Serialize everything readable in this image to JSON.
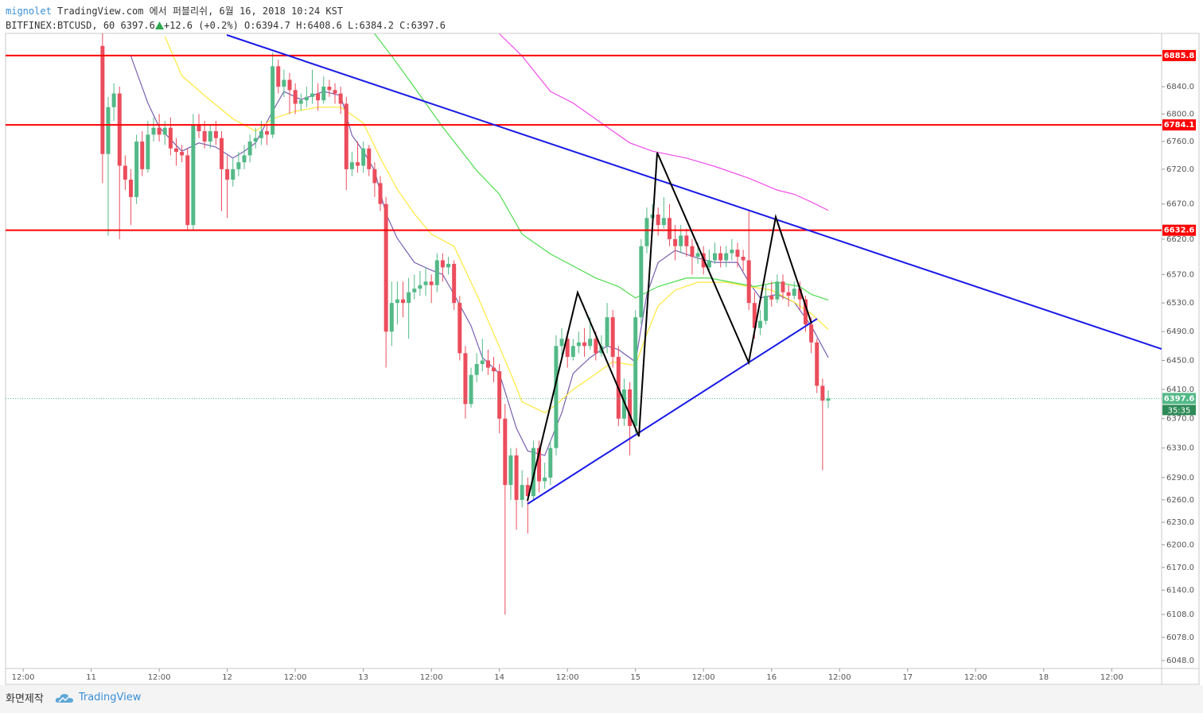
{
  "header": {
    "author": "mignolet",
    "publisher": "TradingView.com 에서 퍼블리쉬, 6월 16, 2018 10:24 KST",
    "symbol": "BITFINEX:BTCUSD, 60",
    "change": "+12.6 (+0.2%)",
    "o_label": "O:",
    "h_label": "H:",
    "l_label": "L:",
    "c_label": "C:"
  },
  "footer": {
    "caption": "화면제작",
    "brand": "TradingView"
  },
  "chart_data": {
    "type": "candlestick",
    "log_scale": true,
    "grid": false,
    "countdown": "35:35",
    "xlim": [
      -3.1,
      200.8
    ],
    "ylim": [
      6037.7,
      6918.6
    ],
    "xticks": [
      {
        "value": 0,
        "label": "12:00"
      },
      {
        "value": 12,
        "label": "11"
      },
      {
        "value": 24,
        "label": "12:00"
      },
      {
        "value": 36,
        "label": "12"
      },
      {
        "value": 48,
        "label": "12:00"
      },
      {
        "value": 60,
        "label": "13"
      },
      {
        "value": 72,
        "label": "12:00"
      },
      {
        "value": 84,
        "label": "14"
      },
      {
        "value": 96,
        "label": "12:00"
      },
      {
        "value": 108,
        "label": "15"
      },
      {
        "value": 120,
        "label": "12:00"
      },
      {
        "value": 132,
        "label": "16"
      },
      {
        "value": 144,
        "label": "12:00"
      },
      {
        "value": 156,
        "label": "17"
      },
      {
        "value": 168,
        "label": "12:00"
      },
      {
        "value": 180,
        "label": "18"
      },
      {
        "value": 192,
        "label": "12:00"
      }
    ],
    "yticks": [
      {
        "value": 6840,
        "label": "6840.0"
      },
      {
        "value": 6800,
        "label": "6800.0"
      },
      {
        "value": 6760,
        "label": "6760.0"
      },
      {
        "value": 6720,
        "label": "6720.0"
      },
      {
        "value": 6670,
        "label": "6670.0"
      },
      {
        "value": 6620,
        "label": "6620.0"
      },
      {
        "value": 6570,
        "label": "6570.0"
      },
      {
        "value": 6530,
        "label": "6530.0"
      },
      {
        "value": 6490,
        "label": "6490.0"
      },
      {
        "value": 6450,
        "label": "6450.0"
      },
      {
        "value": 6410,
        "label": "6410.0"
      },
      {
        "value": 6370,
        "label": "6370.0"
      },
      {
        "value": 6330,
        "label": "6330.0"
      },
      {
        "value": 6290,
        "label": "6290.0"
      },
      {
        "value": 6260,
        "label": "6260.0"
      },
      {
        "value": 6230,
        "label": "6230.0"
      },
      {
        "value": 6200,
        "label": "6200.0"
      },
      {
        "value": 6170,
        "label": "6170.0"
      },
      {
        "value": 6140,
        "label": "6140.0"
      },
      {
        "value": 6108,
        "label": "6108.0"
      },
      {
        "value": 6078,
        "label": "6078.0"
      },
      {
        "value": 6048,
        "label": "6048.0"
      }
    ],
    "hlines": [
      {
        "value": 6885.8,
        "label": "6885.8",
        "color": "#ff0000"
      },
      {
        "value": 6784.1,
        "label": "6784.1",
        "color": "#ff0000"
      },
      {
        "value": 6632.6,
        "label": "6632.6",
        "color": "#ff0000"
      }
    ],
    "up_color": "#53b987",
    "down_color": "#eb4d5c",
    "x": [
      14,
      15,
      16,
      17,
      18,
      19,
      20,
      21,
      22,
      23,
      24,
      25,
      26,
      27,
      28,
      29,
      30,
      31,
      32,
      33,
      34,
      35,
      36,
      37,
      38,
      39,
      40,
      41,
      42,
      43,
      44,
      45,
      46,
      47,
      48,
      49,
      50,
      51,
      52,
      53,
      54,
      55,
      56,
      57,
      58,
      59,
      60,
      61,
      62,
      63,
      64,
      65,
      66,
      67,
      68,
      69,
      70,
      71,
      72,
      73,
      74,
      75,
      76,
      77,
      78,
      79,
      80,
      81,
      82,
      83,
      84,
      85,
      86,
      87,
      88,
      89,
      90,
      91,
      92,
      93,
      94,
      95,
      96,
      97,
      98,
      99,
      100,
      101,
      102,
      103,
      104,
      105,
      106,
      107,
      108,
      109,
      110,
      111,
      112,
      113,
      114,
      115,
      116,
      117,
      118,
      119,
      120,
      121,
      122,
      123,
      124,
      125,
      126,
      127,
      128,
      129,
      130,
      131,
      132,
      133,
      134,
      135,
      136,
      137,
      138,
      139,
      140,
      141,
      142
    ],
    "candles": [
      [
        6900,
        6920,
        6700,
        6742
      ],
      [
        6742,
        6825,
        6625,
        6810
      ],
      [
        6810,
        6845,
        6790,
        6830
      ],
      [
        6830,
        6840,
        6620,
        6725
      ],
      [
        6725,
        6740,
        6690,
        6705
      ],
      [
        6705,
        6720,
        6640,
        6680
      ],
      [
        6680,
        6770,
        6670,
        6760
      ],
      [
        6760,
        6775,
        6710,
        6720
      ],
      [
        6720,
        6790,
        6715,
        6770
      ],
      [
        6770,
        6795,
        6760,
        6780
      ],
      [
        6780,
        6800,
        6760,
        6770
      ],
      [
        6770,
        6790,
        6755,
        6780
      ],
      [
        6780,
        6795,
        6740,
        6750
      ],
      [
        6750,
        6765,
        6725,
        6745
      ],
      [
        6745,
        6755,
        6730,
        6740
      ],
      [
        6740,
        6750,
        6632,
        6640
      ],
      [
        6640,
        6800,
        6632,
        6785
      ],
      [
        6785,
        6800,
        6765,
        6775
      ],
      [
        6775,
        6790,
        6750,
        6760
      ],
      [
        6760,
        6785,
        6750,
        6775
      ],
      [
        6775,
        6790,
        6755,
        6765
      ],
      [
        6765,
        6775,
        6660,
        6720
      ],
      [
        6720,
        6740,
        6650,
        6705
      ],
      [
        6705,
        6735,
        6695,
        6720
      ],
      [
        6720,
        6745,
        6710,
        6730
      ],
      [
        6730,
        6755,
        6720,
        6740
      ],
      [
        6740,
        6770,
        6730,
        6760
      ],
      [
        6760,
        6780,
        6750,
        6765
      ],
      [
        6765,
        6790,
        6755,
        6775
      ],
      [
        6775,
        6785,
        6755,
        6770
      ],
      [
        6770,
        6890,
        6765,
        6870
      ],
      [
        6870,
        6880,
        6830,
        6840
      ],
      [
        6840,
        6865,
        6825,
        6850
      ],
      [
        6850,
        6860,
        6800,
        6835
      ],
      [
        6835,
        6845,
        6800,
        6815
      ],
      [
        6815,
        6830,
        6805,
        6820
      ],
      [
        6820,
        6840,
        6810,
        6825
      ],
      [
        6825,
        6865,
        6815,
        6830
      ],
      [
        6830,
        6845,
        6805,
        6820
      ],
      [
        6820,
        6855,
        6815,
        6840
      ],
      [
        6840,
        6850,
        6825,
        6835
      ],
      [
        6835,
        6845,
        6815,
        6830
      ],
      [
        6830,
        6840,
        6800,
        6815
      ],
      [
        6815,
        6825,
        6690,
        6720
      ],
      [
        6720,
        6745,
        6710,
        6730
      ],
      [
        6730,
        6760,
        6715,
        6725
      ],
      [
        6725,
        6760,
        6715,
        6750
      ],
      [
        6750,
        6755,
        6710,
        6720
      ],
      [
        6720,
        6730,
        6680,
        6700
      ],
      [
        6700,
        6710,
        6660,
        6670
      ],
      [
        6670,
        6680,
        6440,
        6490
      ],
      [
        6490,
        6560,
        6470,
        6530
      ],
      [
        6530,
        6560,
        6500,
        6535
      ],
      [
        6535,
        6560,
        6510,
        6530
      ],
      [
        6530,
        6565,
        6480,
        6545
      ],
      [
        6545,
        6570,
        6535,
        6550
      ],
      [
        6550,
        6575,
        6540,
        6555
      ],
      [
        6555,
        6580,
        6540,
        6560
      ],
      [
        6560,
        6570,
        6530,
        6555
      ],
      [
        6555,
        6600,
        6545,
        6590
      ],
      [
        6590,
        6600,
        6560,
        6580
      ],
      [
        6580,
        6595,
        6570,
        6585
      ],
      [
        6585,
        6590,
        6520,
        6530
      ],
      [
        6530,
        6540,
        6450,
        6460
      ],
      [
        6460,
        6470,
        6370,
        6390
      ],
      [
        6390,
        6440,
        6385,
        6430
      ],
      [
        6430,
        6460,
        6420,
        6445
      ],
      [
        6445,
        6480,
        6435,
        6450
      ],
      [
        6450,
        6465,
        6430,
        6440
      ],
      [
        6440,
        6455,
        6420,
        6435
      ],
      [
        6435,
        6445,
        6350,
        6370
      ],
      [
        6370,
        6390,
        6108,
        6280
      ],
      [
        6280,
        6330,
        6260,
        6320
      ],
      [
        6320,
        6330,
        6220,
        6260
      ],
      [
        6260,
        6300,
        6250,
        6280
      ],
      [
        6280,
        6290,
        6215,
        6265
      ],
      [
        6265,
        6340,
        6260,
        6330
      ],
      [
        6330,
        6340,
        6270,
        6285
      ],
      [
        6285,
        6310,
        6275,
        6290
      ],
      [
        6290,
        6340,
        6280,
        6330
      ],
      [
        6330,
        6485,
        6320,
        6470
      ],
      [
        6470,
        6495,
        6455,
        6480
      ],
      [
        6480,
        6490,
        6440,
        6455
      ],
      [
        6455,
        6480,
        6450,
        6470
      ],
      [
        6470,
        6490,
        6460,
        6475
      ],
      [
        6475,
        6495,
        6455,
        6470
      ],
      [
        6470,
        6510,
        6465,
        6480
      ],
      [
        6480,
        6490,
        6450,
        6460
      ],
      [
        6460,
        6485,
        6455,
        6470
      ],
      [
        6470,
        6530,
        6460,
        6510
      ],
      [
        6510,
        6520,
        6440,
        6455
      ],
      [
        6455,
        6470,
        6360,
        6370
      ],
      [
        6370,
        6425,
        6360,
        6410
      ],
      [
        6410,
        6420,
        6320,
        6360
      ],
      [
        6360,
        6520,
        6350,
        6510
      ],
      [
        6510,
        6620,
        6500,
        6610
      ],
      [
        6610,
        6665,
        6600,
        6650
      ],
      [
        6650,
        6670,
        6630,
        6655
      ],
      [
        6655,
        6665,
        6625,
        6640
      ],
      [
        6640,
        6680,
        6635,
        6650
      ],
      [
        6650,
        6670,
        6610,
        6620
      ],
      [
        6620,
        6640,
        6590,
        6610
      ],
      [
        6610,
        6640,
        6600,
        6625
      ],
      [
        6625,
        6635,
        6595,
        6610
      ],
      [
        6610,
        6620,
        6570,
        6595
      ],
      [
        6595,
        6615,
        6585,
        6600
      ],
      [
        6600,
        6610,
        6570,
        6580
      ],
      [
        6580,
        6605,
        6575,
        6590
      ],
      [
        6590,
        6615,
        6585,
        6600
      ],
      [
        6600,
        6610,
        6580,
        6590
      ],
      [
        6590,
        6610,
        6580,
        6600
      ],
      [
        6600,
        6620,
        6590,
        6605
      ],
      [
        6605,
        6615,
        6580,
        6595
      ],
      [
        6595,
        6605,
        6575,
        6590
      ],
      [
        6590,
        6660,
        6520,
        6530
      ],
      [
        6530,
        6545,
        6480,
        6495
      ],
      [
        6495,
        6520,
        6485,
        6505
      ],
      [
        6505,
        6555,
        6500,
        6540
      ],
      [
        6540,
        6560,
        6525,
        6535
      ],
      [
        6535,
        6570,
        6530,
        6560
      ],
      [
        6560,
        6570,
        6535,
        6545
      ],
      [
        6545,
        6555,
        6525,
        6540
      ],
      [
        6540,
        6560,
        6535,
        6550
      ],
      [
        6550,
        6560,
        6520,
        6535
      ],
      [
        6535,
        6540,
        6490,
        6500
      ],
      [
        6500,
        6510,
        6460,
        6475
      ],
      [
        6475,
        6480,
        6405,
        6415
      ],
      [
        6415,
        6425,
        6300,
        6394.7
      ],
      [
        6394.7,
        6408.6,
        6384.2,
        6397.6
      ]
    ],
    "series": [
      {
        "color": "#7b5fb0",
        "x": [
          19,
          22,
          24,
          26,
          28,
          31,
          34,
          37,
          39,
          41,
          44,
          46,
          49,
          53,
          56,
          58,
          60,
          62,
          64,
          66,
          69,
          72,
          74,
          76,
          79,
          81,
          84,
          87,
          89,
          92,
          95,
          97,
          100,
          103,
          105,
          108,
          110,
          112,
          115,
          119,
          122,
          126,
          128,
          130,
          133,
          136,
          139,
          142
        ],
        "values": [
          6885,
          6816,
          6781,
          6763,
          6746,
          6758,
          6752,
          6736,
          6746,
          6758,
          6804,
          6833,
          6821,
          6833,
          6827,
          6769,
          6746,
          6718,
          6656,
          6621,
          6587,
          6576,
          6570,
          6542,
          6498,
          6454,
          6432,
          6357,
          6326,
          6320,
          6378,
          6432,
          6454,
          6470,
          6465,
          6448,
          6542,
          6587,
          6604,
          6593,
          6587,
          6587,
          6559,
          6537,
          6542,
          6531,
          6498,
          6454
        ]
      },
      {
        "color": "#ffe83a",
        "x": [
          25,
          28,
          32,
          37,
          41,
          44,
          48,
          52,
          56,
          60,
          63,
          66,
          69,
          72,
          76,
          80,
          83,
          86,
          88,
          92,
          94,
          97,
          100,
          104,
          108,
          110,
          112,
          115,
          119,
          124,
          128,
          132,
          136,
          139,
          142
        ],
        "values": [
          6914,
          6856,
          6827,
          6793,
          6775,
          6793,
          6804,
          6810,
          6810,
          6787,
          6736,
          6691,
          6656,
          6627,
          6610,
          6542,
          6487,
          6432,
          6393,
          6378,
          6389,
          6410,
          6426,
          6448,
          6443,
          6487,
          6526,
          6548,
          6559,
          6559,
          6553,
          6548,
          6531,
          6515,
          6493
        ]
      },
      {
        "color": "#4ddc4d",
        "x": [
          62,
          65,
          69,
          74,
          80,
          84,
          88,
          93,
          97,
          101,
          105,
          108,
          112,
          117,
          121,
          125,
          129,
          133,
          137,
          139,
          142
        ],
        "values": [
          6918,
          6885,
          6839,
          6781,
          6718,
          6684,
          6627,
          6599,
          6582,
          6565,
          6553,
          6537,
          6553,
          6565,
          6565,
          6559,
          6553,
          6559,
          6553,
          6542,
          6534
        ]
      },
      {
        "color": "#f04ce8",
        "x": [
          84,
          88,
          93,
          97,
          103,
          107,
          111,
          117,
          122,
          128,
          133,
          136,
          139,
          142
        ],
        "values": [
          6918,
          6885,
          6833,
          6816,
          6781,
          6758,
          6746,
          6736,
          6724,
          6707,
          6690,
          6684,
          6673,
          6661
        ]
      }
    ]
  }
}
